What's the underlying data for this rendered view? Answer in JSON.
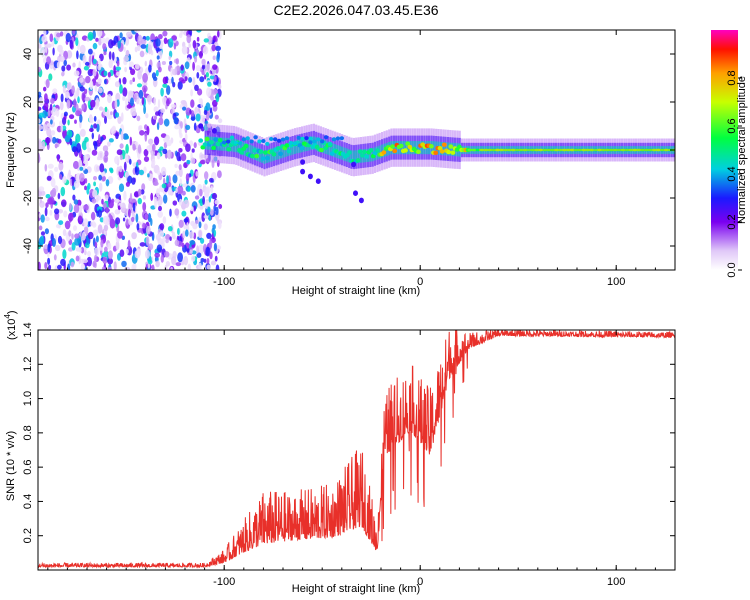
{
  "chart_data": [
    {
      "type": "heatmap",
      "title": "C2E2.2026.047.03.45.E36",
      "xlabel": "Height of straight line (km)",
      "ylabel": "Frequency (Hz)",
      "xlim": [
        -195,
        130
      ],
      "ylim": [
        -50,
        50
      ],
      "x_ticks": [
        -100,
        0,
        100
      ],
      "x_tick_labels": [
        "-100",
        "0",
        "100"
      ],
      "y_ticks": [
        -40,
        -20,
        0,
        20,
        40
      ],
      "y_tick_labels": [
        "-40",
        "-20",
        "0",
        "20",
        "40"
      ],
      "colorbar": {
        "label": "Normalized spectral amplitude",
        "range": [
          0,
          1
        ],
        "ticks": [
          0.0,
          0.2,
          0.4,
          0.6,
          0.8
        ],
        "tick_labels": [
          "0.0",
          "0.2",
          "0.4",
          "0.6",
          "0.8"
        ]
      },
      "features": {
        "noise_region_x": [
          -195,
          -102
        ],
        "track_points": [
          {
            "x": -110,
            "f": 3
          },
          {
            "x": -95,
            "f": 2
          },
          {
            "x": -80,
            "f": -3
          },
          {
            "x": -65,
            "f": 1
          },
          {
            "x": -55,
            "f": 3
          },
          {
            "x": -45,
            "f": 0
          },
          {
            "x": -35,
            "f": -3
          },
          {
            "x": -25,
            "f": -2
          },
          {
            "x": -15,
            "f": 1
          },
          {
            "x": -5,
            "f": 1
          },
          {
            "x": 5,
            "f": 1
          },
          {
            "x": 20,
            "f": 0
          },
          {
            "x": 60,
            "f": 0
          },
          {
            "x": 130,
            "f": 0
          }
        ],
        "track_peak_amplitude": 0.9
      }
    },
    {
      "type": "line",
      "xlabel": "Height of straight line (km)",
      "ylabel": "SNR (10 * v/v)",
      "multiplier_label": "(x10",
      "multiplier_exponent": "4",
      "xlim": [
        -195,
        130
      ],
      "ylim": [
        0,
        1.4
      ],
      "x_ticks": [
        -100,
        0,
        100
      ],
      "x_tick_labels": [
        "-100",
        "0",
        "100"
      ],
      "y_ticks": [
        0.2,
        0.4,
        0.6,
        0.8,
        1.0,
        1.2,
        1.4
      ],
      "y_tick_labels": [
        "0.2",
        "0.4",
        "0.6",
        "0.8",
        "1.0",
        "1.2",
        "1.4"
      ],
      "series": [
        {
          "name": "SNR",
          "color": "#e8302a",
          "envelope": [
            {
              "x": -195,
              "base": 0.02,
              "amp": 0.015
            },
            {
              "x": -110,
              "base": 0.02,
              "amp": 0.015
            },
            {
              "x": -100,
              "base": 0.05,
              "amp": 0.05
            },
            {
              "x": -90,
              "base": 0.12,
              "amp": 0.12
            },
            {
              "x": -80,
              "base": 0.18,
              "amp": 0.2
            },
            {
              "x": -65,
              "base": 0.2,
              "amp": 0.18
            },
            {
              "x": -45,
              "base": 0.22,
              "amp": 0.2
            },
            {
              "x": -30,
              "base": 0.3,
              "amp": 0.3
            },
            {
              "x": -22,
              "base": 0.12,
              "amp": 0.12
            },
            {
              "x": -18,
              "base": 0.7,
              "amp": 0.25
            },
            {
              "x": -5,
              "base": 0.85,
              "amp": 0.25
            },
            {
              "x": 5,
              "base": 0.7,
              "amp": 0.25
            },
            {
              "x": 15,
              "base": 1.15,
              "amp": 0.2
            },
            {
              "x": 25,
              "base": 1.3,
              "amp": 0.06
            },
            {
              "x": 40,
              "base": 1.37,
              "amp": 0.025
            },
            {
              "x": 130,
              "base": 1.36,
              "amp": 0.02
            }
          ]
        }
      ]
    }
  ]
}
